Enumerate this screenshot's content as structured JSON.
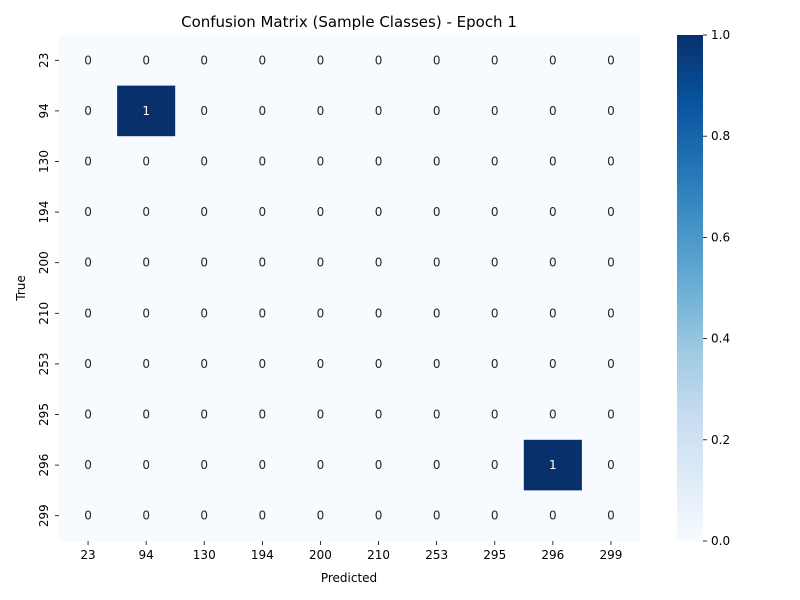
{
  "chart_data": {
    "type": "heatmap",
    "title": "Confusion Matrix (Sample Classes) - Epoch 1",
    "xlabel": "Predicted",
    "ylabel": "True",
    "x_categories": [
      "23",
      "94",
      "130",
      "194",
      "200",
      "210",
      "253",
      "295",
      "296",
      "299"
    ],
    "y_categories": [
      "23",
      "94",
      "130",
      "194",
      "200",
      "210",
      "253",
      "295",
      "296",
      "299"
    ],
    "values": [
      [
        0,
        0,
        0,
        0,
        0,
        0,
        0,
        0,
        0,
        0
      ],
      [
        0,
        1,
        0,
        0,
        0,
        0,
        0,
        0,
        0,
        0
      ],
      [
        0,
        0,
        0,
        0,
        0,
        0,
        0,
        0,
        0,
        0
      ],
      [
        0,
        0,
        0,
        0,
        0,
        0,
        0,
        0,
        0,
        0
      ],
      [
        0,
        0,
        0,
        0,
        0,
        0,
        0,
        0,
        0,
        0
      ],
      [
        0,
        0,
        0,
        0,
        0,
        0,
        0,
        0,
        0,
        0
      ],
      [
        0,
        0,
        0,
        0,
        0,
        0,
        0,
        0,
        0,
        0
      ],
      [
        0,
        0,
        0,
        0,
        0,
        0,
        0,
        0,
        0,
        0
      ],
      [
        0,
        0,
        0,
        0,
        0,
        0,
        0,
        0,
        1,
        0
      ],
      [
        0,
        0,
        0,
        0,
        0,
        0,
        0,
        0,
        0,
        0
      ]
    ],
    "colorbar": {
      "range": [
        0,
        1
      ],
      "ticks": [
        "0.0",
        "0.2",
        "0.4",
        "0.6",
        "0.8",
        "1.0"
      ],
      "colormap": "Blues",
      "low_color": "#f7fbff",
      "high_color": "#08306b"
    },
    "grid": false
  }
}
